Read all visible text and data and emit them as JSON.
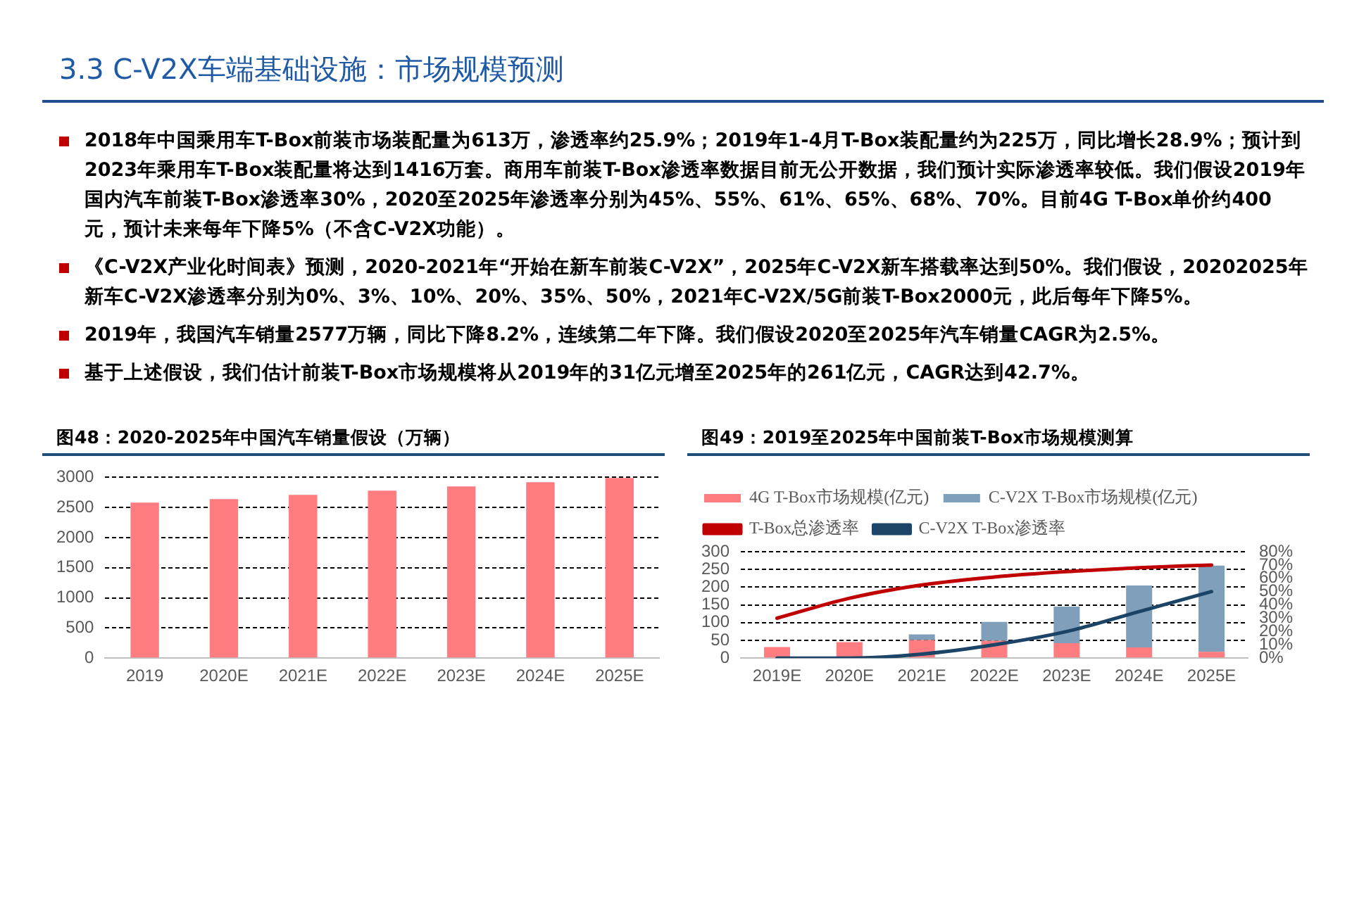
{
  "chart_data": [
    {
      "type": "other",
      "title": "3.3 C-V2X车端基础设施：市场规模预测",
      "annotations": [
        "2018年中国乘用车T-Box前装市场装配量为613万，渗透率约25.9%；2019年1-4月T-Box装配量约为225万，同比增长28.9%；预计到2023年乘用车T-Box装配量将达到1416万套。商用车前装T-Box渗透率数据目前无公开数据，我们预计实际渗透率较低。我们假设2019年国内汽车前装T-Box渗透率30%，2020至2025年渗透率分别为45%、55%、61%、65%、68%、70%。目前4G T-Box单价约400元，预计未来每年下降5%（不含C-V2X功能）。",
        "《C-V2X产业化时间表》预测，2020-2021年“开始在新车前装C-V2X”，2025年C-V2X新车搭载率达到50%。我们假设，20202025年新车C-V2X渗透率分别为0%、3%、10%、20%、35%、50%，2021年C-V2X/5G前装T-Box2000元，此后每年下降5%。",
        "2019年，我国汽车销量2577万辆，同比下降8.2%，连续第二年下降。我们假设2020至2025年汽车销量CAGR为2.5%。",
        "基于上述假设，我们估计前装T-Box市场规模将从2019年的31亿元增至2025年的261亿元，CAGR达到42.7%。"
      ]
    },
    {
      "type": "bar",
      "title": "图48：2020-2025年中国汽车销量假设（万辆）",
      "categories": [
        "2019",
        "2020E",
        "2021E",
        "2022E",
        "2023E",
        "2024E",
        "2025E"
      ],
      "values": [
        2580,
        2640,
        2710,
        2780,
        2850,
        2920,
        2990
      ],
      "color": "#ff7c80",
      "ylim": [
        0,
        3000
      ],
      "yticks": [
        0,
        500,
        1000,
        1500,
        2000,
        2500,
        3000
      ],
      "grid": "y"
    },
    {
      "type": "bar",
      "title": "图49：2019至2025年中国前装T-Box市场规模测算",
      "categories": [
        "2019E",
        "2020E",
        "2021E",
        "2022E",
        "2023E",
        "2024E",
        "2025E"
      ],
      "stacked": true,
      "series": [
        {
          "name": "4G T-Box市场规模(亿元)",
          "color": "#ff7c80",
          "values": [
            31,
            45,
            51,
            49,
            42,
            30,
            18
          ]
        },
        {
          "name": "C-V2X T-Box市场规模(亿元)",
          "color": "#809fba",
          "values": [
            0,
            0,
            16,
            53,
            103,
            175,
            243
          ]
        },
        {
          "name": "T-Box总渗透率",
          "type": "line",
          "axis": "y2",
          "color": "#c00000",
          "values": [
            30,
            45,
            55,
            61,
            65,
            68,
            70
          ]
        },
        {
          "name": "C-V2X T-Box渗透率",
          "type": "line",
          "axis": "y2",
          "color": "#1b4466",
          "values": [
            0,
            0,
            3,
            10,
            20,
            35,
            50
          ]
        }
      ],
      "ylim": [
        0,
        300
      ],
      "yticks": [
        0,
        50,
        100,
        150,
        200,
        250,
        300
      ],
      "y2lim": [
        0,
        80
      ],
      "y2ticks": [
        {
          "value": 0,
          "label": "0%"
        },
        {
          "value": 10,
          "label": "10%"
        },
        {
          "value": 20,
          "label": "20%"
        },
        {
          "value": 30,
          "label": "30%"
        },
        {
          "value": 40,
          "label": "40%"
        },
        {
          "value": 50,
          "label": "50%"
        },
        {
          "value": 60,
          "label": "60%"
        },
        {
          "value": 70,
          "label": "70%"
        },
        {
          "value": 80,
          "label": "80%"
        }
      ],
      "grid": "y",
      "legend": "top"
    }
  ]
}
